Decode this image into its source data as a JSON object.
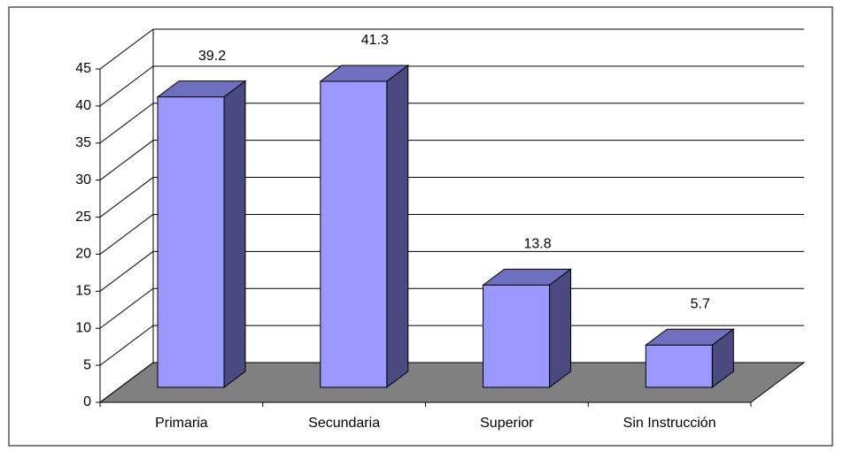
{
  "chart_data": {
    "type": "bar3d",
    "categories": [
      "Primaria",
      "Secundaria",
      "Superior",
      "Sin Instrucción"
    ],
    "values": [
      39.2,
      41.3,
      13.8,
      5.7
    ],
    "color": "#9999ff",
    "ylim": [
      0,
      45
    ],
    "yticks": [
      0,
      5,
      10,
      15,
      20,
      25,
      30,
      35,
      40,
      45
    ],
    "grid": true
  }
}
